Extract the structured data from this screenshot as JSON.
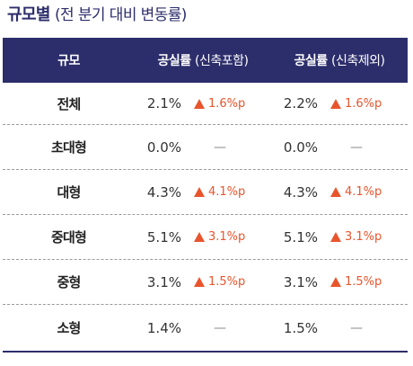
{
  "title": {
    "main": "규모별",
    "sub": "(전 분기 대비 변동률)"
  },
  "header": {
    "col_size": "규모",
    "col_incl_main": "공실률",
    "col_incl_note": "(신축포함)",
    "col_excl_main": "공실률",
    "col_excl_note": "(신축제외)"
  },
  "rows": [
    {
      "size": "전체",
      "incl_rate": "2.1%",
      "incl_change": "1.6%p",
      "incl_trend": "up",
      "excl_rate": "2.2%",
      "excl_change": "1.6%p",
      "excl_trend": "up"
    },
    {
      "size": "초대형",
      "incl_rate": "0.0%",
      "incl_change": "—",
      "incl_trend": "none",
      "excl_rate": "0.0%",
      "excl_change": "—",
      "excl_trend": "none"
    },
    {
      "size": "대형",
      "incl_rate": "4.3%",
      "incl_change": "4.1%p",
      "incl_trend": "up",
      "excl_rate": "4.3%",
      "excl_change": "4.1%p",
      "excl_trend": "up"
    },
    {
      "size": "중대형",
      "incl_rate": "5.1%",
      "incl_change": "3.1%p",
      "incl_trend": "up",
      "excl_rate": "5.1%",
      "excl_change": "3.1%p",
      "excl_trend": "up"
    },
    {
      "size": "중형",
      "incl_rate": "3.1%",
      "incl_change": "1.5%p",
      "incl_trend": "up",
      "excl_rate": "3.1%",
      "excl_change": "1.5%p",
      "excl_trend": "up"
    },
    {
      "size": "소형",
      "incl_rate": "1.4%",
      "incl_change": "—",
      "incl_trend": "none",
      "excl_rate": "1.5%",
      "excl_change": "—",
      "excl_trend": "none"
    }
  ],
  "colors": {
    "header_bg": "#2c2d6b",
    "increase": "#e8552d",
    "text": "#333333"
  },
  "icons": {
    "increase": "up-triangle-icon",
    "no_change": "dash"
  }
}
